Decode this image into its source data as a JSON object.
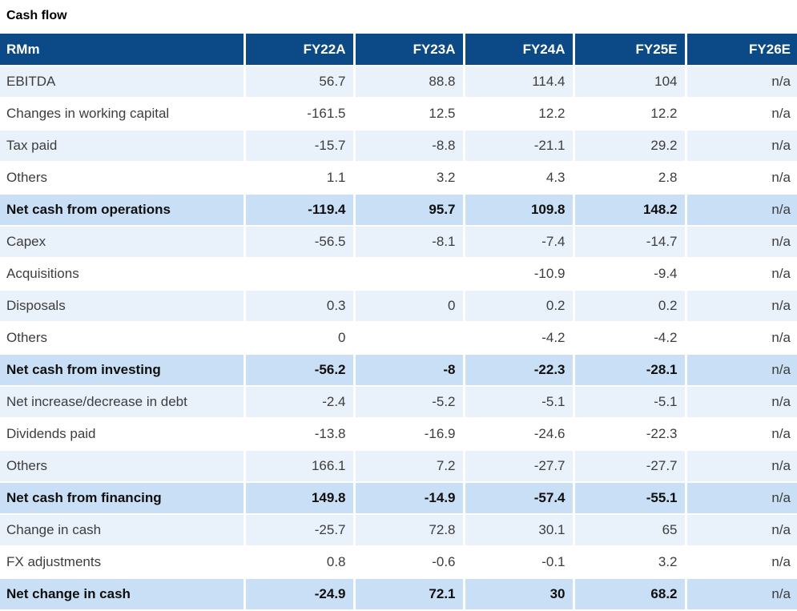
{
  "title": "Cash flow",
  "colors": {
    "header_bg": "#0c4a87",
    "header_text": "#ffffff",
    "row_light": "#e9f1fb",
    "row_white": "#ffffff",
    "row_total": "#c9dff5",
    "text": "#3d3d3d",
    "text_bold": "#0f0f0f",
    "grid": "#ffffff"
  },
  "table": {
    "unit_label": "RMm",
    "columns": [
      "RMm",
      "FY22A",
      "FY23A",
      "FY24A",
      "FY25E",
      "FY26E"
    ],
    "rows": [
      {
        "label": "EBITDA",
        "variant": "light",
        "bold": false,
        "values": [
          "56.7",
          "88.8",
          "114.4",
          "104",
          "n/a"
        ]
      },
      {
        "label": "Changes in working capital",
        "variant": "white",
        "bold": false,
        "values": [
          "-161.5",
          "12.5",
          "12.2",
          "12.2",
          "n/a"
        ]
      },
      {
        "label": "Tax paid",
        "variant": "light",
        "bold": false,
        "values": [
          "-15.7",
          "-8.8",
          "-21.1",
          "29.2",
          "n/a"
        ]
      },
      {
        "label": "Others",
        "variant": "white",
        "bold": false,
        "values": [
          "1.1",
          "3.2",
          "4.3",
          "2.8",
          "n/a"
        ]
      },
      {
        "label": "Net cash from operations",
        "variant": "total",
        "bold": true,
        "values": [
          "-119.4",
          "95.7",
          "109.8",
          "148.2",
          "n/a"
        ]
      },
      {
        "label": "Capex",
        "variant": "light",
        "bold": false,
        "values": [
          "-56.5",
          "-8.1",
          "-7.4",
          "-14.7",
          "n/a"
        ]
      },
      {
        "label": "Acquisitions",
        "variant": "white",
        "bold": false,
        "values": [
          "",
          "",
          "-10.9",
          "-9.4",
          "n/a"
        ]
      },
      {
        "label": "Disposals",
        "variant": "light",
        "bold": false,
        "values": [
          "0.3",
          "0",
          "0.2",
          "0.2",
          "n/a"
        ]
      },
      {
        "label": "Others",
        "variant": "white",
        "bold": false,
        "values": [
          "0",
          "",
          "-4.2",
          "-4.2",
          "n/a"
        ]
      },
      {
        "label": "Net cash from investing",
        "variant": "total",
        "bold": true,
        "values": [
          "-56.2",
          "-8",
          "-22.3",
          "-28.1",
          "n/a"
        ]
      },
      {
        "label": "Net increase/decrease in debt",
        "variant": "light",
        "bold": false,
        "values": [
          "-2.4",
          "-5.2",
          "-5.1",
          "-5.1",
          "n/a"
        ]
      },
      {
        "label": "Dividends paid",
        "variant": "white",
        "bold": false,
        "values": [
          "-13.8",
          "-16.9",
          "-24.6",
          "-22.3",
          "n/a"
        ]
      },
      {
        "label": "Others",
        "variant": "light",
        "bold": false,
        "values": [
          "166.1",
          "7.2",
          "-27.7",
          "-27.7",
          "n/a"
        ]
      },
      {
        "label": "Net cash from financing",
        "variant": "total",
        "bold": true,
        "values": [
          "149.8",
          "-14.9",
          "-57.4",
          "-55.1",
          "n/a"
        ]
      },
      {
        "label": "Change in cash",
        "variant": "light",
        "bold": false,
        "values": [
          "-25.7",
          "72.8",
          "30.1",
          "65",
          "n/a"
        ]
      },
      {
        "label": "FX adjustments",
        "variant": "white",
        "bold": false,
        "values": [
          "0.8",
          "-0.6",
          "-0.1",
          "3.2",
          "n/a"
        ]
      },
      {
        "label": "Net change in cash",
        "variant": "total",
        "bold": true,
        "values": [
          "-24.9",
          "72.1",
          "30",
          "68.2",
          "n/a"
        ]
      }
    ]
  }
}
